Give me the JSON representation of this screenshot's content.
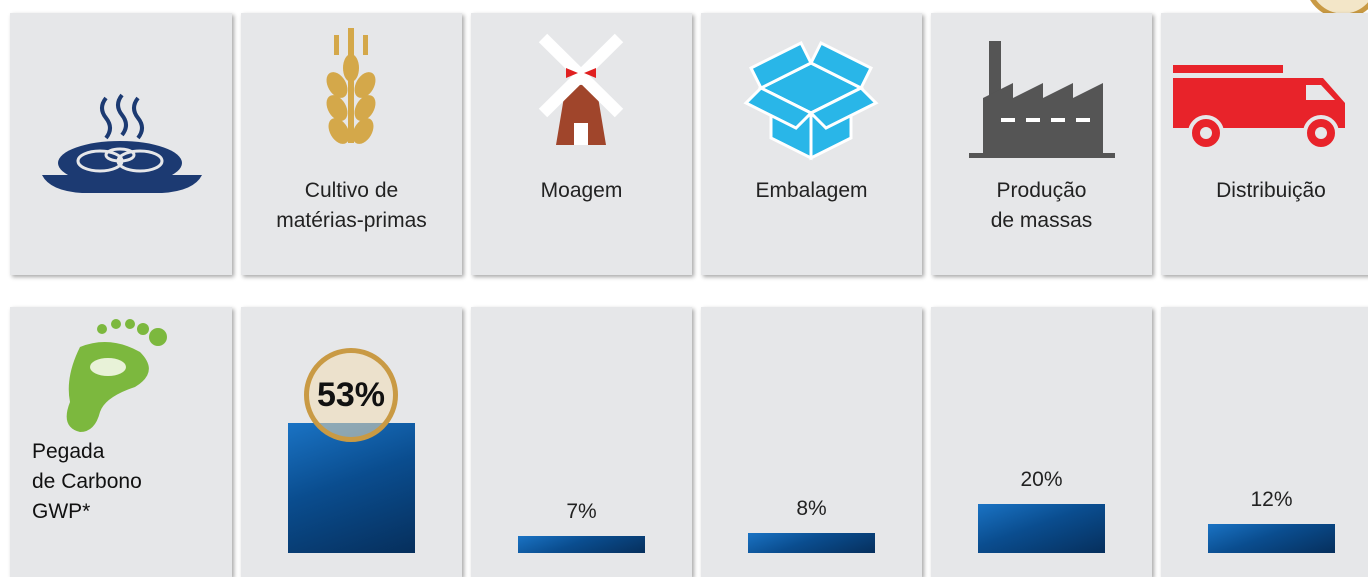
{
  "chart_data": {
    "type": "bar",
    "categories": [
      "Cultivo de\nmatérias-primas",
      "Moagem",
      "Embalagem",
      "Produção\nde massas",
      "Distribuição"
    ],
    "series_label": "Pegada\nde Carbono\nGWP*",
    "values": [
      53,
      7,
      8,
      20,
      12
    ],
    "value_labels": [
      "53%",
      "7%",
      "8%",
      "20%",
      "12%"
    ],
    "color": "#0a4d8f",
    "ylim": [
      0,
      53
    ]
  }
}
